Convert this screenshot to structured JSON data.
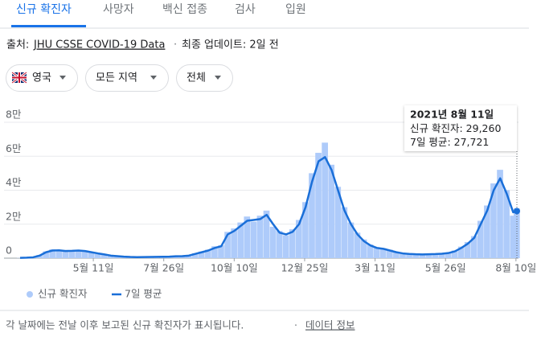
{
  "tabs": [
    "신규 확진자",
    "사망자",
    "백신 접종",
    "검사",
    "입원"
  ],
  "source": {
    "prefix": "출처:",
    "link": "JHU CSSE COVID-19 Data",
    "updated": "최종 업데이트: 2일 전"
  },
  "filters": [
    "영국",
    "모든 지역",
    "전체"
  ],
  "chart_data": {
    "type": "combo",
    "x": [
      0,
      7,
      14,
      21,
      28,
      35,
      42,
      49,
      56,
      63,
      70,
      77,
      84,
      91,
      98,
      105,
      112,
      119,
      126,
      133,
      140,
      147,
      154,
      161,
      168,
      175,
      182,
      189,
      196,
      203,
      210,
      217,
      224,
      231,
      238,
      245,
      252,
      259,
      266,
      273,
      280,
      287,
      294,
      301,
      308,
      315,
      322,
      329,
      336,
      343,
      350,
      357,
      364,
      371,
      378,
      385,
      392,
      399,
      406,
      413,
      420,
      427,
      434,
      441,
      448,
      455,
      462,
      469,
      476,
      483,
      490,
      497,
      504,
      511,
      518,
      525,
      532,
      536
    ],
    "xlim": [
      0,
      536
    ],
    "xticks": [
      {
        "value": 79,
        "label": "5월 11일"
      },
      {
        "value": 155,
        "label": "7월 26일"
      },
      {
        "value": 231,
        "label": "10월 10일"
      },
      {
        "value": 307,
        "label": "12월 25일"
      },
      {
        "value": 383,
        "label": "3월 11일"
      },
      {
        "value": 459,
        "label": "5월 26일"
      },
      {
        "value": 535,
        "label": "8월 10일"
      }
    ],
    "ylim": [
      0,
      80000
    ],
    "yticks": [
      0,
      {
        "value": 20000,
        "label": "2만"
      },
      {
        "value": 40000,
        "label": "4만"
      },
      {
        "value": 60000,
        "label": "6만"
      },
      {
        "value": 80000,
        "label": "8만"
      }
    ],
    "grid": true,
    "series": [
      {
        "name": "신규 확진자",
        "type": "bar",
        "color": "#aecbfa",
        "values": [
          150,
          350,
          600,
          1800,
          4000,
          5200,
          4300,
          4800,
          4000,
          4900,
          3900,
          3700,
          2500,
          2400,
          1400,
          1300,
          800,
          750,
          550,
          700,
          650,
          800,
          750,
          1000,
          1200,
          1150,
          1800,
          2900,
          3900,
          5000,
          7000,
          7600,
          15500,
          17500,
          21000,
          24500,
          21500,
          25000,
          28000,
          18500,
          16000,
          13500,
          17000,
          22500,
          33000,
          50000,
          62000,
          68000,
          55000,
          42000,
          30000,
          21000,
          15000,
          11000,
          8000,
          6500,
          5800,
          5000,
          3800,
          3000,
          2700,
          2500,
          2300,
          2500,
          2600,
          2800,
          3300,
          4500,
          6800,
          9500,
          13000,
          22000,
          31000,
          44000,
          52000,
          40000,
          25000,
          29260
        ]
      },
      {
        "name": "7일 평균",
        "type": "line",
        "color": "#1a6fd8",
        "values": [
          200,
          300,
          500,
          1500,
          3500,
          4500,
          4600,
          4200,
          4300,
          4500,
          4200,
          3500,
          2800,
          2200,
          1500,
          1200,
          900,
          700,
          600,
          650,
          700,
          750,
          800,
          900,
          1100,
          1200,
          1500,
          2500,
          3500,
          4500,
          6000,
          7000,
          14000,
          16000,
          19000,
          22000,
          22500,
          23000,
          25500,
          20000,
          15000,
          14000,
          15500,
          20000,
          30000,
          45000,
          57000,
          59500,
          52000,
          40000,
          28000,
          20000,
          14000,
          10000,
          7500,
          6000,
          5500,
          4500,
          3500,
          2800,
          2500,
          2300,
          2200,
          2300,
          2400,
          2600,
          3000,
          4000,
          6000,
          8500,
          12000,
          20000,
          28000,
          40000,
          47000,
          38000,
          27000,
          27721
        ]
      }
    ],
    "tooltip": {
      "date": "2021년 8월 11일",
      "rows": [
        {
          "label": "신규 확진자",
          "value": "29,260"
        },
        {
          "label": "7일 평균",
          "value": "27,721"
        }
      ]
    }
  },
  "footer": {
    "note": "각 날짜에는 전날 이후 보고된 신규 확진자가 표시됩니다.",
    "link": "데이터 정보"
  }
}
